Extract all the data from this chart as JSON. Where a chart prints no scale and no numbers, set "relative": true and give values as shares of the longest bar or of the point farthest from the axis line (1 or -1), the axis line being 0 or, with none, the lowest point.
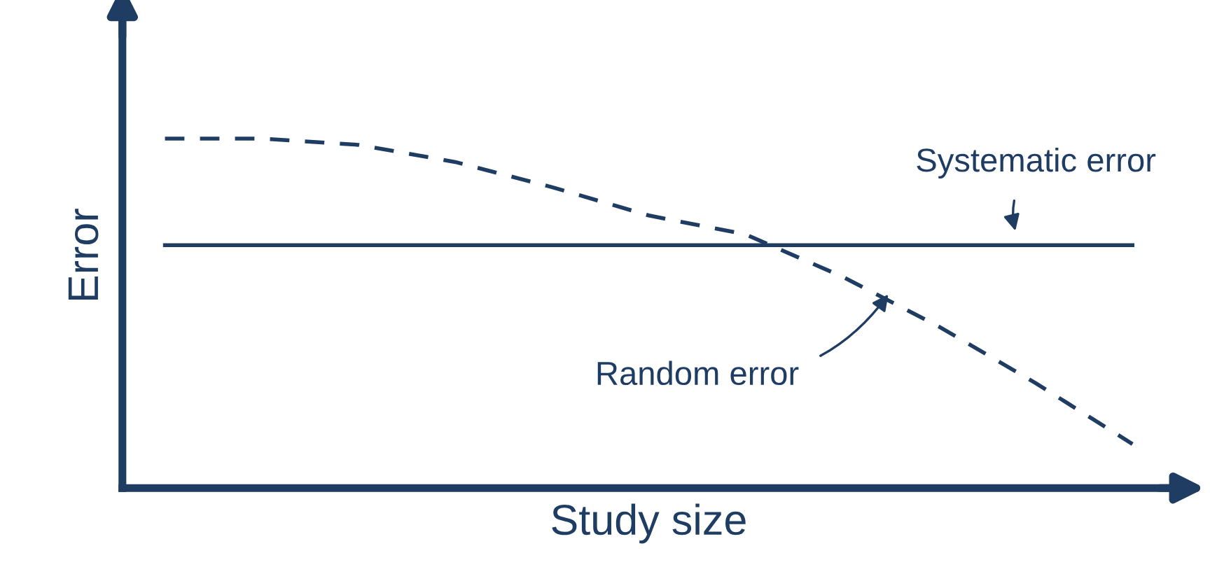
{
  "chart_data": {
    "type": "line",
    "relative": true,
    "xlabel": "Study size",
    "ylabel": "Error",
    "categories": [
      null,
      null,
      null,
      null,
      null,
      null,
      null,
      null,
      null,
      null,
      null
    ],
    "series": [
      {
        "name": "Systematic error",
        "color": "#1f3d63",
        "line_style": "solid",
        "values": [
          0.695,
          0.695,
          0.695,
          0.695,
          0.695,
          0.695,
          0.695,
          0.695,
          0.695,
          0.695,
          0.695
        ]
      },
      {
        "name": "Random error",
        "color": "#1f3d63",
        "line_style": "dashed",
        "values": [
          1.0,
          1.0,
          0.982,
          0.933,
          0.861,
          0.78,
          0.726,
          0.605,
          0.462,
          0.3,
          0.126
        ]
      }
    ],
    "legend": false,
    "marker": "none"
  }
}
